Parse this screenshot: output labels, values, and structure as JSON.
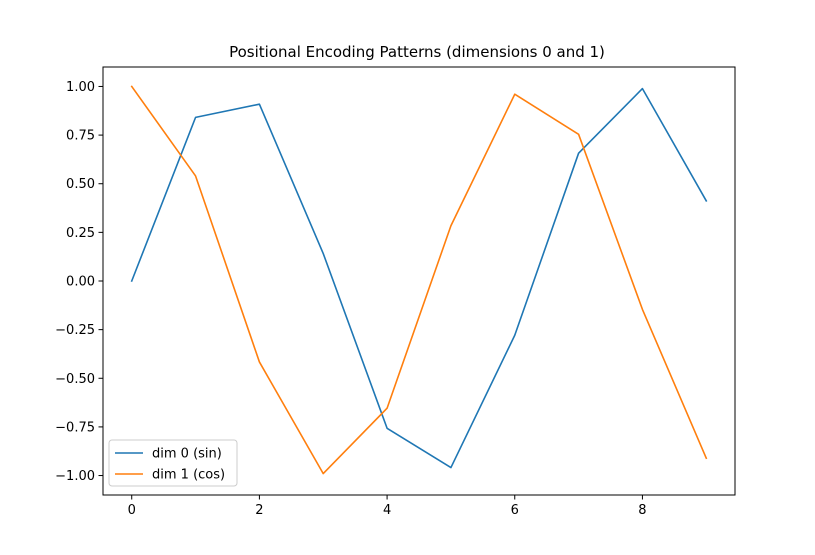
{
  "chart_data": {
    "type": "line",
    "title": "Positional Encoding Patterns (dimensions 0 and 1)",
    "xlabel": "",
    "ylabel": "",
    "x": [
      0,
      1,
      2,
      3,
      4,
      5,
      6,
      7,
      8,
      9
    ],
    "xlim": [
      -0.45,
      9.45
    ],
    "ylim": [
      -1.1,
      1.1
    ],
    "x_ticks": [
      0,
      2,
      4,
      6,
      8
    ],
    "x_tick_labels": [
      "0",
      "2",
      "4",
      "6",
      "8"
    ],
    "y_ticks": [
      1.0,
      0.75,
      0.5,
      0.25,
      0.0,
      -0.25,
      -0.5,
      -0.75,
      -1.0
    ],
    "y_tick_labels": [
      "1.00",
      "0.75",
      "0.50",
      "0.25",
      "0.00",
      "−0.25",
      "−0.50",
      "−0.75",
      "−1.00"
    ],
    "grid": false,
    "legend_position": "lower-left",
    "series": [
      {
        "name": "dim 0 (sin)",
        "color": "#1f77b4",
        "values": [
          0.0,
          0.841,
          0.909,
          0.141,
          -0.757,
          -0.959,
          -0.279,
          0.657,
          0.989,
          0.412
        ]
      },
      {
        "name": "dim 1 (cos)",
        "color": "#ff7f0e",
        "values": [
          1.0,
          0.54,
          -0.416,
          -0.99,
          -0.654,
          0.284,
          0.96,
          0.754,
          -0.146,
          -0.911
        ]
      }
    ]
  }
}
